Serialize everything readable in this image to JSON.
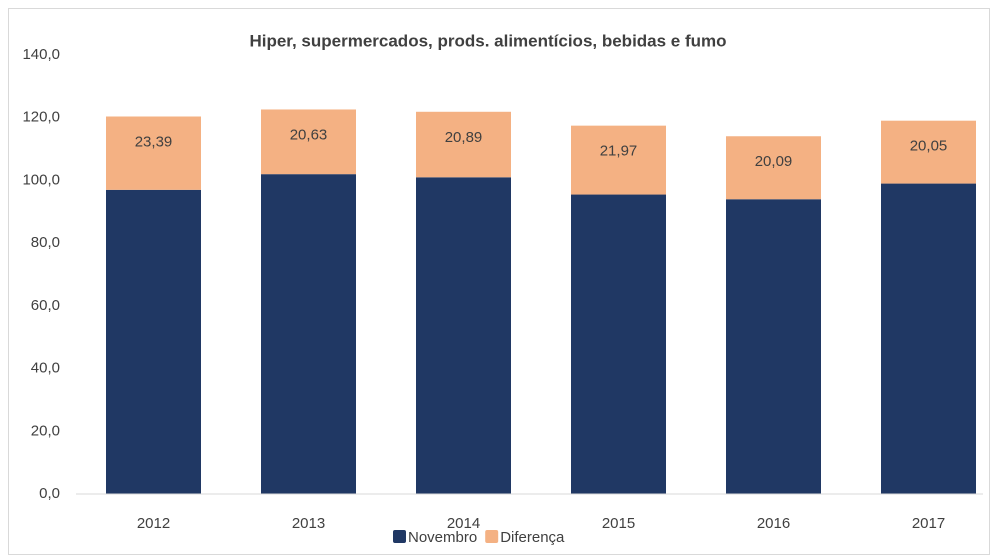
{
  "chart_data": {
    "type": "stacked_bar",
    "title": "Hiper, supermercados, prods.  alimentícios, bebidas e fumo",
    "categories": [
      "2012",
      "2013",
      "2014",
      "2015",
      "2016",
      "2017"
    ],
    "series": [
      {
        "name": "Novembro",
        "color": "#203864",
        "values": [
          97,
          102,
          101,
          95.5,
          94,
          99
        ]
      },
      {
        "name": "Diferença",
        "color": "#f4b183",
        "values": [
          23.39,
          20.63,
          20.89,
          21.97,
          20.09,
          20.05
        ],
        "value_labels": [
          "23,39",
          "20,63",
          "20,89",
          "21,97",
          "20,09",
          "20,05"
        ]
      }
    ],
    "ylim": [
      0,
      140
    ],
    "yticks": [
      {
        "value": 0,
        "label": "0,0"
      },
      {
        "value": 20,
        "label": "20,0"
      },
      {
        "value": 40,
        "label": "40,0"
      },
      {
        "value": 60,
        "label": "60,0"
      },
      {
        "value": 80,
        "label": "80,0"
      },
      {
        "value": 100,
        "label": "100,0"
      },
      {
        "value": 120,
        "label": "120,0"
      },
      {
        "value": 140,
        "label": "140,0"
      }
    ],
    "legend": "bottom"
  }
}
